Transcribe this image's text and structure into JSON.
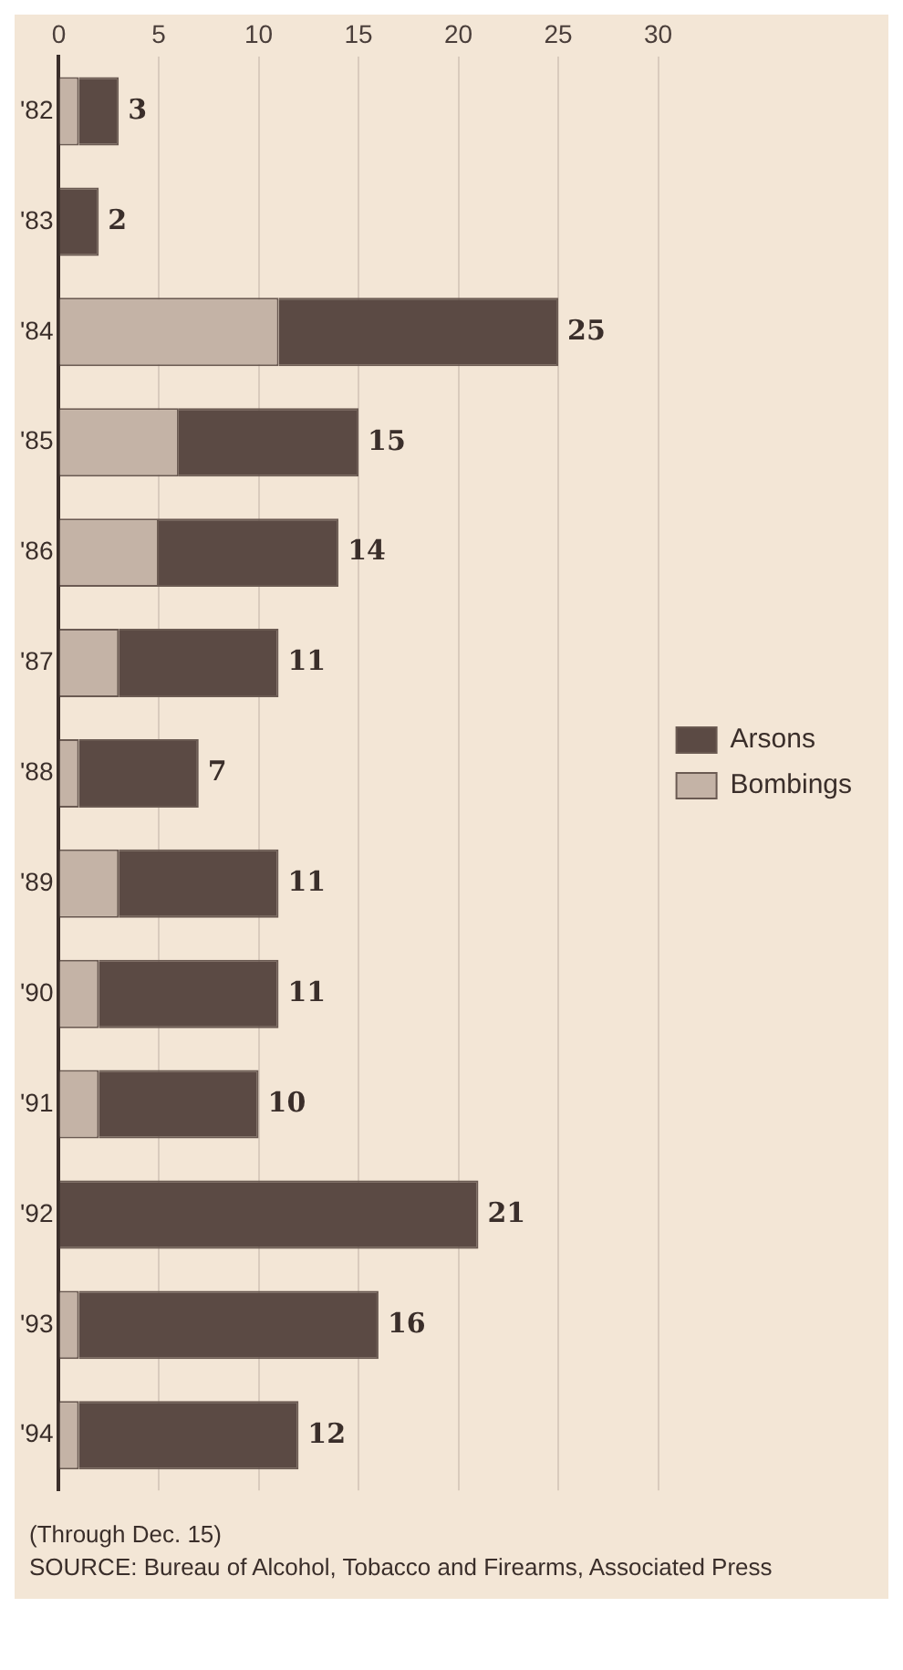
{
  "chart_data": {
    "type": "bar",
    "orientation": "horizontal",
    "stacked": true,
    "categories": [
      "'82",
      "'83",
      "'84",
      "'85",
      "'86",
      "'87",
      "'88",
      "'89",
      "'90",
      "'91",
      "'92",
      "'93",
      "'94"
    ],
    "series": [
      {
        "name": "Bombings",
        "color": "#c4b3a6",
        "values": [
          1,
          0,
          11,
          6,
          5,
          3,
          1,
          3,
          2,
          2,
          0,
          1,
          1
        ]
      },
      {
        "name": "Arsons",
        "color": "#5b4a44",
        "values": [
          2,
          2,
          14,
          9,
          9,
          8,
          6,
          8,
          9,
          8,
          21,
          15,
          11
        ]
      }
    ],
    "totals": [
      "3",
      "2",
      "25",
      "15",
      "14",
      "11",
      "7",
      "11",
      "11",
      "10",
      "21",
      "16",
      "12"
    ],
    "xlim": [
      0,
      30
    ],
    "xticks": [
      0,
      5,
      10,
      15,
      20,
      25,
      30
    ],
    "grid": "x",
    "legend": "right",
    "annotations": [
      "(Through Dec. 15)",
      "SOURCE: Bureau of Alcohol, Tobacco and Firearms, Associated Press"
    ]
  }
}
